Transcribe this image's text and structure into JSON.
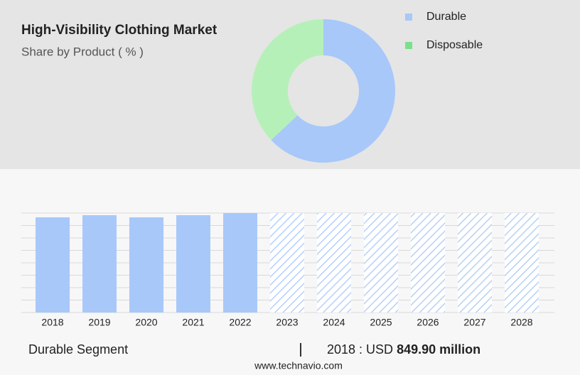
{
  "chart_data": [
    {
      "type": "donut",
      "title": "High-Visibility Clothing Market",
      "subtitle": "Share by Product ( % )",
      "categories": [
        "Durable",
        "Disposable"
      ],
      "values": [
        63,
        37
      ],
      "colors": [
        "#a8c8fa",
        "#b6f0b9"
      ],
      "legend_colors": [
        "#a8c8fa",
        "#7ddf8c"
      ],
      "legend": "top-right"
    },
    {
      "type": "bar",
      "categories": [
        "2018",
        "2019",
        "2020",
        "2021",
        "2022",
        "2023",
        "2024",
        "2025",
        "2026",
        "2027",
        "2028"
      ],
      "values": [
        849.9,
        868.9,
        849.9,
        868.9,
        887.9,
        null,
        null,
        null,
        null,
        null,
        null
      ],
      "color": "#a8c8fa",
      "ylim": [
        0,
        888
      ],
      "grid": true
    }
  ],
  "footer": {
    "segment": "Durable Segment",
    "label": "2018 : USD",
    "value": "849.90 million",
    "source": "www.technavio.com"
  }
}
